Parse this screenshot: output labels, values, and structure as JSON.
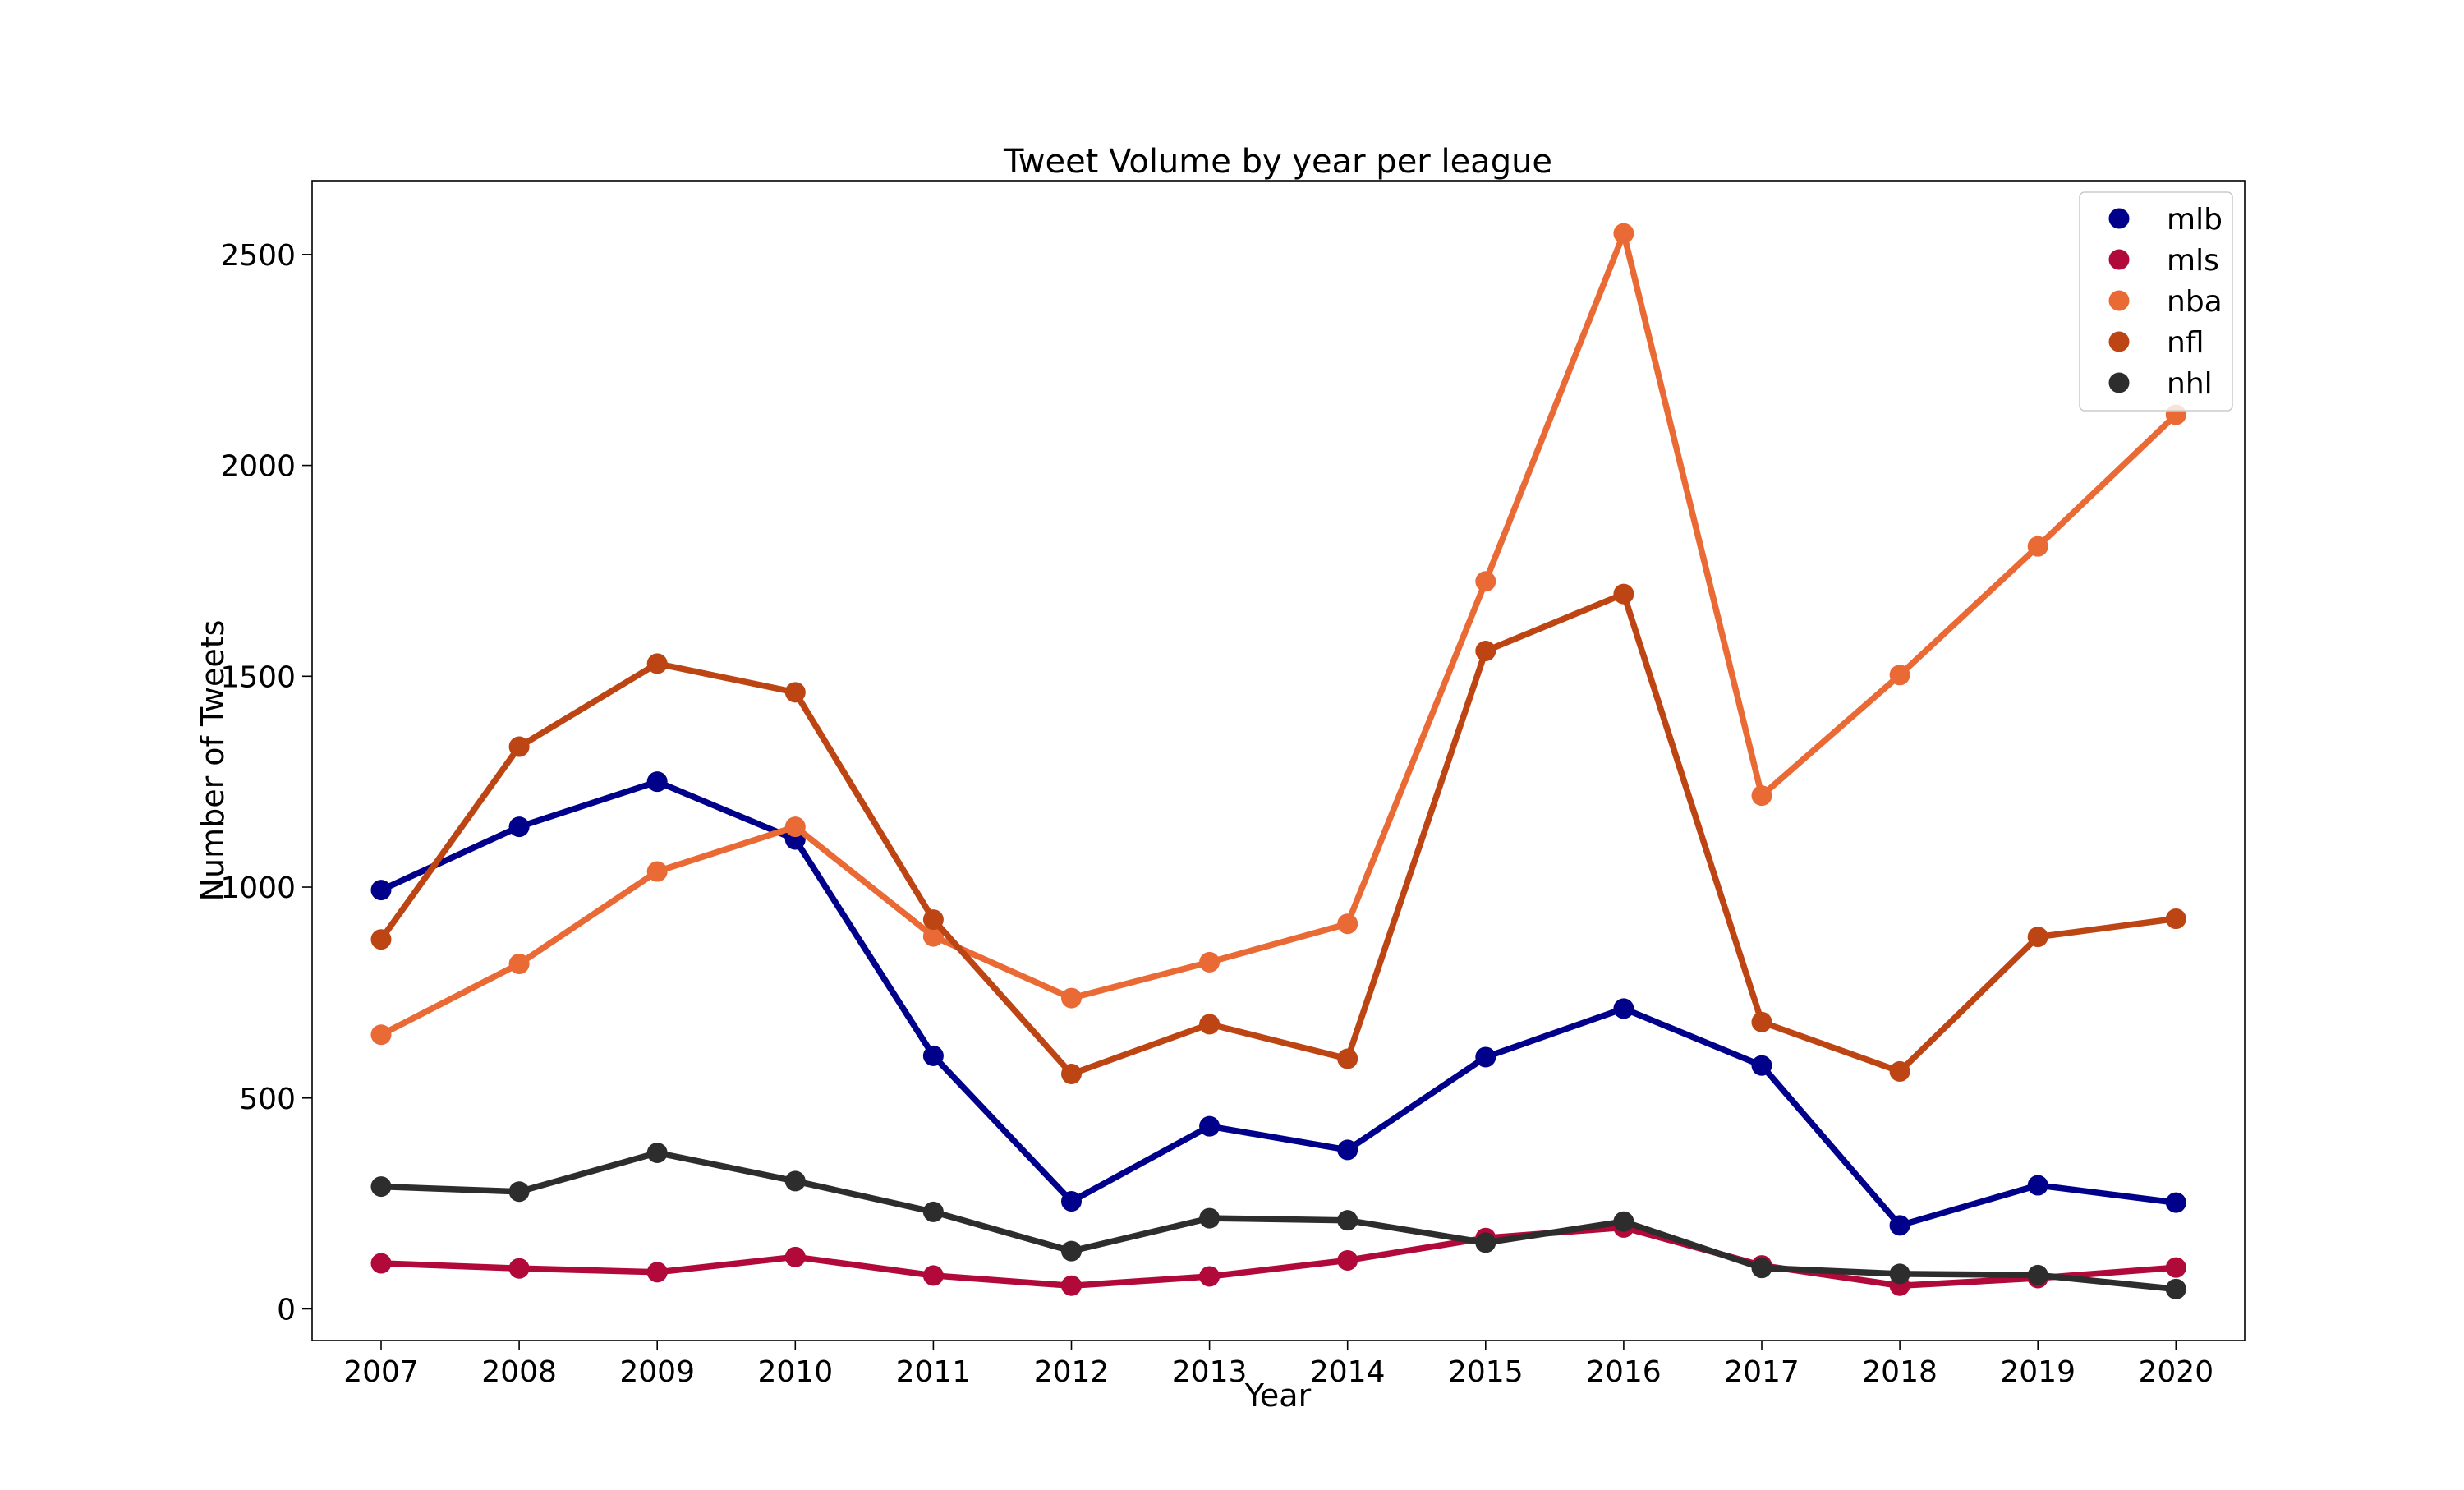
{
  "chart_data": {
    "type": "line",
    "title": "Tweet Volume by year per league",
    "xlabel": "Year",
    "ylabel": "Number of Tweets",
    "x": [
      "2007",
      "2008",
      "2009",
      "2010",
      "2011",
      "2012",
      "2013",
      "2014",
      "2015",
      "2016",
      "2017",
      "2018",
      "2019",
      "2020"
    ],
    "ylim": [
      -75,
      2675
    ],
    "yticks": [
      0,
      500,
      1000,
      1500,
      2000,
      2500
    ],
    "grid": false,
    "legend_position": "top-right",
    "series": [
      {
        "name": "mlb",
        "color": "#00008b",
        "values": [
          993,
          1143,
          1250,
          1113,
          600,
          255,
          433,
          377,
          597,
          712,
          577,
          198,
          293,
          252
        ]
      },
      {
        "name": "mls",
        "color": "#b0093a",
        "values": [
          108,
          96,
          87,
          123,
          79,
          55,
          77,
          115,
          168,
          193,
          103,
          55,
          73,
          98
        ]
      },
      {
        "name": "nba",
        "color": "#ea6a35",
        "values": [
          650,
          818,
          1037,
          1143,
          883,
          737,
          822,
          913,
          1725,
          2550,
          1217,
          1503,
          1808,
          2120
        ]
      },
      {
        "name": "nfl",
        "color": "#bd4413",
        "values": [
          876,
          1333,
          1530,
          1462,
          923,
          557,
          675,
          593,
          1560,
          1695,
          680,
          563,
          882,
          925
        ]
      },
      {
        "name": "nhl",
        "color": "#2d2d2d",
        "values": [
          290,
          278,
          370,
          303,
          230,
          137,
          215,
          210,
          157,
          207,
          97,
          83,
          80,
          47
        ]
      }
    ]
  }
}
